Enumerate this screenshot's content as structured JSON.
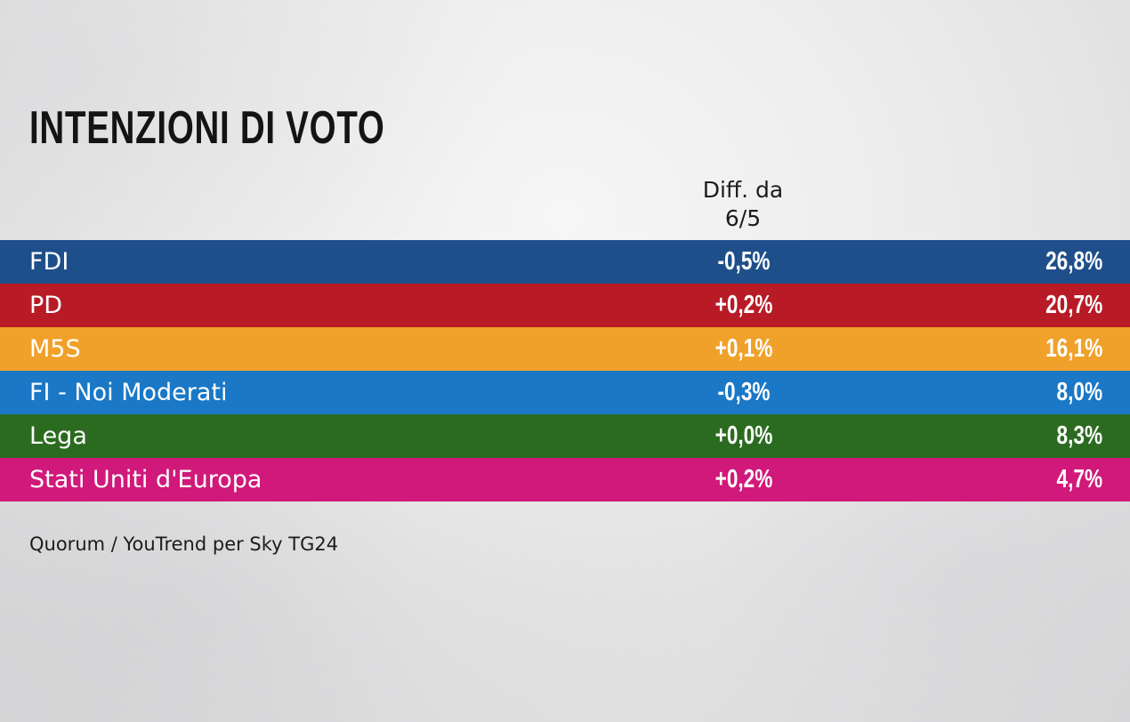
{
  "title": "INTENZIONI DI VOTO",
  "diff_header": {
    "line1": "Diff. da",
    "line2": "6/5"
  },
  "source": "Quorum / YouTrend per Sky TG24",
  "chart_data": {
    "type": "table",
    "title": "INTENZIONI DI VOTO",
    "columns": [
      "",
      "Diff. da 6/5",
      ""
    ],
    "rows": [
      {
        "party": "FDI",
        "diff": "-0,5%",
        "value": "26,8%",
        "color": "#1f4f8a"
      },
      {
        "party": "PD",
        "diff": "+0,2%",
        "value": "20,7%",
        "color": "#b81a26"
      },
      {
        "party": "M5S",
        "diff": "+0,1%",
        "value": "16,1%",
        "color": "#f0a12a"
      },
      {
        "party": "FI - Noi Moderati",
        "diff": "-0,3%",
        "value": "8,0%",
        "color": "#1a78c6"
      },
      {
        "party": "Lega",
        "diff": "+0,0%",
        "value": "8,3%",
        "color": "#2b6b20"
      },
      {
        "party": "Stati Uniti d'Europa",
        "diff": "+0,2%",
        "value": "4,7%",
        "color": "#d0197a"
      }
    ]
  }
}
